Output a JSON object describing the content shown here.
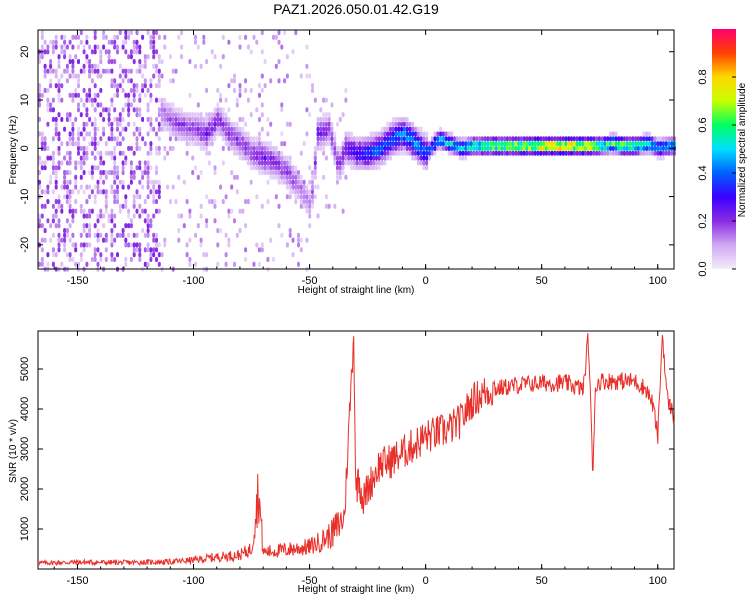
{
  "figure_title": "PAZ1.2026.050.01.42.G19",
  "chart_data": [
    {
      "type": "heatmap",
      "panel": "top",
      "title": "",
      "xlabel": "Height of straight line (km)",
      "ylabel": "Frequency (Hz)",
      "xlim": [
        -167,
        107
      ],
      "ylim": [
        -25,
        24.5
      ],
      "x_ticks": [
        "-150",
        "-100",
        "-50",
        "0",
        "50",
        "100"
      ],
      "x_tick_values": [
        -150,
        -100,
        -50,
        0,
        50,
        100
      ],
      "y_ticks": [
        "20",
        "10",
        "0",
        "-10",
        "-20"
      ],
      "y_tick_values": [
        20,
        10,
        0,
        -10,
        -20
      ],
      "colorbar": {
        "label": "Normalized spectral amplitude",
        "range": [
          0,
          1
        ],
        "ticks": [
          "0.0",
          "0.2",
          "0.4",
          "0.6",
          "0.8"
        ],
        "tick_values": [
          0.0,
          0.2,
          0.4,
          0.6,
          0.8
        ],
        "colors": [
          "#f4ecfc",
          "#cfa8f2",
          "#8a2be2",
          "#3a00ff",
          "#0060ff",
          "#00e0ff",
          "#00ff60",
          "#c8ff00",
          "#ffd800",
          "#ff4000",
          "#ff0070"
        ]
      },
      "ridge": {
        "description": "frequency track of dominant spectral energy",
        "x": [
          -115,
          -108,
          -100,
          -95,
          -90,
          -85,
          -80,
          -75,
          -70,
          -65,
          -60,
          -55,
          -50,
          -47,
          -42,
          -38,
          -35,
          -30,
          -25,
          -20,
          -15,
          -10,
          -5,
          0,
          5,
          10,
          15,
          20,
          30,
          40,
          50,
          60,
          70,
          75,
          80,
          85,
          90,
          95,
          100,
          105
        ],
        "freq": [
          8,
          5,
          4,
          3,
          6,
          3,
          1,
          -1,
          -2,
          -3,
          -5,
          -8,
          -12,
          3,
          4,
          -4,
          0,
          -1,
          -1,
          0,
          2,
          3,
          1,
          -1,
          2,
          1,
          0,
          0.5,
          0.5,
          0.5,
          0.5,
          0.5,
          0.5,
          0.5,
          1,
          0.5,
          0.5,
          1,
          0,
          0.5
        ],
        "amp": [
          0.15,
          0.2,
          0.2,
          0.25,
          0.2,
          0.2,
          0.2,
          0.2,
          0.25,
          0.2,
          0.2,
          0.15,
          0.15,
          0.25,
          0.2,
          0.2,
          0.25,
          0.3,
          0.4,
          0.4,
          0.4,
          0.45,
          0.45,
          0.4,
          0.5,
          0.55,
          0.5,
          0.6,
          0.7,
          0.75,
          0.85,
          0.85,
          0.8,
          0.6,
          0.7,
          0.7,
          0.6,
          0.6,
          0.45,
          0.5
        ]
      }
    },
    {
      "type": "line",
      "panel": "bottom",
      "title": "",
      "xlabel": "Height of straight line (km)",
      "ylabel": "SNR (10 * v/v)",
      "xlim": [
        -167,
        107
      ],
      "ylim": [
        0,
        5950
      ],
      "x_ticks": [
        "-150",
        "-100",
        "-50",
        "0",
        "50",
        "100"
      ],
      "x_tick_values": [
        -150,
        -100,
        -50,
        0,
        50,
        100
      ],
      "y_ticks": [
        "1000",
        "2000",
        "3000",
        "4000",
        "5000"
      ],
      "y_tick_values": [
        1000,
        2000,
        3000,
        4000,
        5000
      ],
      "line_color": "#e8302a",
      "series": [
        {
          "name": "SNR",
          "x": [
            -167,
            -150,
            -130,
            -110,
            -100,
            -90,
            -80,
            -75,
            -72,
            -70,
            -65,
            -60,
            -55,
            -50,
            -45,
            -40,
            -35,
            -31,
            -30,
            -29,
            -27,
            -25,
            -20,
            -15,
            -10,
            -5,
            0,
            5,
            10,
            15,
            20,
            25,
            30,
            40,
            50,
            60,
            68,
            70,
            71,
            72,
            73,
            75,
            80,
            90,
            95,
            98,
            100,
            102,
            104,
            107
          ],
          "y": [
            150,
            170,
            160,
            180,
            220,
            300,
            350,
            500,
            2000,
            420,
            450,
            480,
            520,
            550,
            700,
            900,
            1300,
            5900,
            1800,
            2400,
            1700,
            2000,
            2600,
            2700,
            2900,
            3100,
            3300,
            3400,
            3500,
            3700,
            4200,
            4400,
            4500,
            4600,
            4650,
            4650,
            4500,
            5800,
            4400,
            2200,
            4500,
            4700,
            4700,
            4700,
            4500,
            4100,
            3300,
            5900,
            4300,
            3800
          ]
        }
      ]
    }
  ]
}
